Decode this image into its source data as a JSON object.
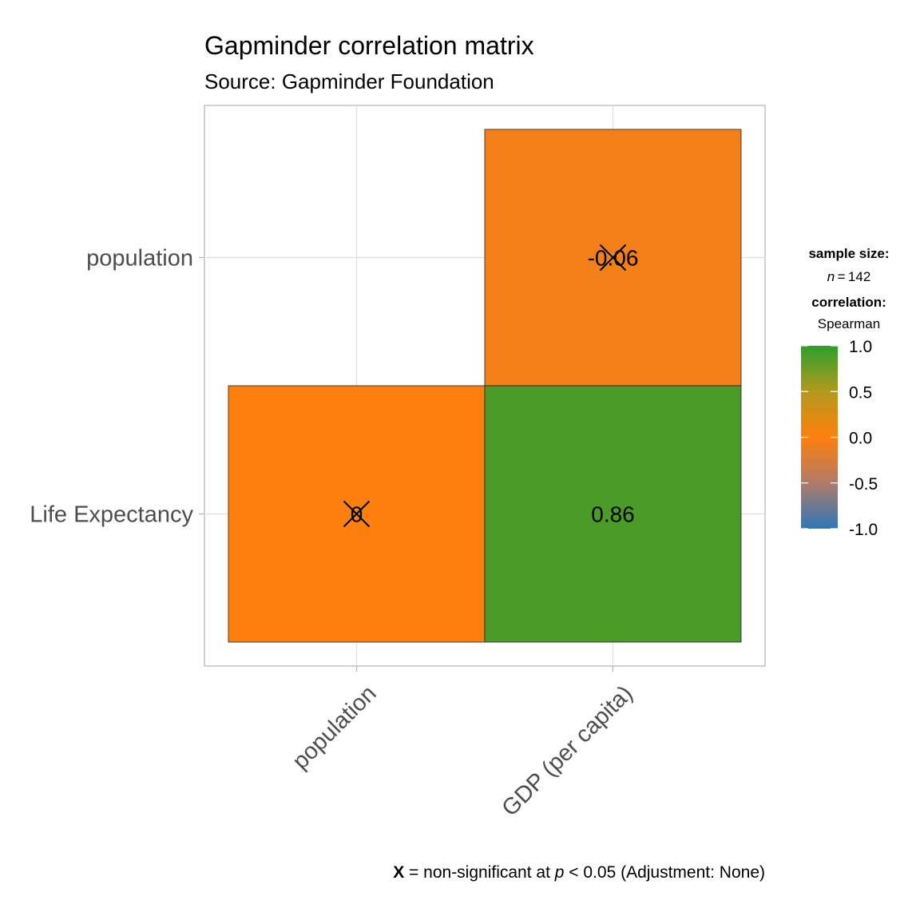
{
  "chart_data": {
    "type": "heatmap",
    "title": "Gapminder correlation matrix",
    "subtitle": "Source: Gapminder Foundation",
    "x_categories": [
      "population",
      "GDP (per capita)"
    ],
    "y_categories": [
      "population",
      "Life Expectancy"
    ],
    "cells": [
      {
        "x": "GDP (per capita)",
        "y": "population",
        "value": -0.06,
        "label": "-0.06",
        "significant": false
      },
      {
        "x": "population",
        "y": "Life Expectancy",
        "value": 0.0,
        "label": "0",
        "significant": false
      },
      {
        "x": "GDP (per capita)",
        "y": "Life Expectancy",
        "value": 0.86,
        "label": "0.86",
        "significant": true
      }
    ],
    "legend": {
      "sample_size_title": "sample size:",
      "sample_size_n_symbol": "n",
      "sample_size_text": " = 142",
      "correlation_title": "correlation:",
      "correlation_method": "Spearman",
      "ticks": [
        1.0,
        0.5,
        0.0,
        -0.5,
        -1.0
      ],
      "tick_labels": [
        "1.0",
        "0.5",
        "0.0",
        "-0.5",
        "-1.0"
      ],
      "range": [
        -1.0,
        1.0
      ],
      "placement": "right"
    },
    "colors": {
      "low": "#2E77B8",
      "mid": "#FF7F0E",
      "high": "#2CA02C"
    },
    "caption": {
      "symbol": "X",
      "text1": " = non-significant at ",
      "p_symbol": "p",
      "text2": " < 0.05 (Adjustment: None)"
    },
    "grid": true
  }
}
